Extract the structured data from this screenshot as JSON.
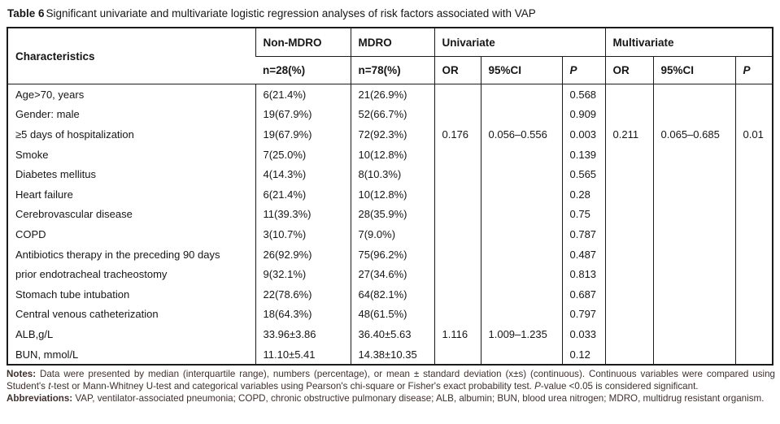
{
  "title": {
    "label": "Table 6",
    "text": "Significant univariate and multivariate logistic regression analyses of risk factors associated with VAP"
  },
  "header": {
    "characteristics": "Characteristics",
    "non_mdro": "Non-MDRO",
    "mdro": "MDRO",
    "univariate": "Univariate",
    "multivariate": "Multivariate",
    "n_non_mdro": "n=28(%)",
    "n_mdro": "n=78(%)",
    "or": "OR",
    "ci": "95%CI",
    "p": "P"
  },
  "rows": [
    {
      "characteristic": "Age>70, years",
      "non_mdro": "6(21.4%)",
      "mdro": "21(26.9%)",
      "uni_or": "",
      "uni_ci": "",
      "uni_p": "0.568",
      "multi_or": "",
      "multi_ci": "",
      "multi_p": ""
    },
    {
      "characteristic": "Gender: male",
      "non_mdro": "19(67.9%)",
      "mdro": "52(66.7%)",
      "uni_or": "",
      "uni_ci": "",
      "uni_p": "0.909",
      "multi_or": "",
      "multi_ci": "",
      "multi_p": ""
    },
    {
      "characteristic": "≥5 days of hospitalization",
      "non_mdro": "19(67.9%)",
      "mdro": "72(92.3%)",
      "uni_or": "0.176",
      "uni_ci": "0.056–0.556",
      "uni_p": "0.003",
      "multi_or": "0.211",
      "multi_ci": "0.065–0.685",
      "multi_p": "0.01"
    },
    {
      "characteristic": "Smoke",
      "non_mdro": "7(25.0%)",
      "mdro": "10(12.8%)",
      "uni_or": "",
      "uni_ci": "",
      "uni_p": "0.139",
      "multi_or": "",
      "multi_ci": "",
      "multi_p": ""
    },
    {
      "characteristic": "Diabetes mellitus",
      "non_mdro": "4(14.3%)",
      "mdro": "8(10.3%)",
      "uni_or": "",
      "uni_ci": "",
      "uni_p": "0.565",
      "multi_or": "",
      "multi_ci": "",
      "multi_p": ""
    },
    {
      "characteristic": "Heart failure",
      "non_mdro": "6(21.4%)",
      "mdro": "10(12.8%)",
      "uni_or": "",
      "uni_ci": "",
      "uni_p": "0.28",
      "multi_or": "",
      "multi_ci": "",
      "multi_p": ""
    },
    {
      "characteristic": "Cerebrovascular disease",
      "non_mdro": "11(39.3%)",
      "mdro": "28(35.9%)",
      "uni_or": "",
      "uni_ci": "",
      "uni_p": "0.75",
      "multi_or": "",
      "multi_ci": "",
      "multi_p": ""
    },
    {
      "characteristic": "COPD",
      "non_mdro": "3(10.7%)",
      "mdro": "7(9.0%)",
      "uni_or": "",
      "uni_ci": "",
      "uni_p": "0.787",
      "multi_or": "",
      "multi_ci": "",
      "multi_p": ""
    },
    {
      "characteristic": "Antibiotics therapy in the preceding 90 days",
      "non_mdro": "26(92.9%)",
      "mdro": "75(96.2%)",
      "uni_or": "",
      "uni_ci": "",
      "uni_p": "0.487",
      "multi_or": "",
      "multi_ci": "",
      "multi_p": ""
    },
    {
      "characteristic": "prior endotracheal tracheostomy",
      "non_mdro": "9(32.1%)",
      "mdro": "27(34.6%)",
      "uni_or": "",
      "uni_ci": "",
      "uni_p": "0.813",
      "multi_or": "",
      "multi_ci": "",
      "multi_p": ""
    },
    {
      "characteristic": "Stomach tube intubation",
      "non_mdro": "22(78.6%)",
      "mdro": "64(82.1%)",
      "uni_or": "",
      "uni_ci": "",
      "uni_p": "0.687",
      "multi_or": "",
      "multi_ci": "",
      "multi_p": ""
    },
    {
      "characteristic": "Central venous catheterization",
      "non_mdro": "18(64.3%)",
      "mdro": "48(61.5%)",
      "uni_or": "",
      "uni_ci": "",
      "uni_p": "0.797",
      "multi_or": "",
      "multi_ci": "",
      "multi_p": ""
    },
    {
      "characteristic": "ALB,g/L",
      "non_mdro": "33.96±3.86",
      "mdro": "36.40±5.63",
      "uni_or": "1.116",
      "uni_ci": "1.009–1.235",
      "uni_p": "0.033",
      "multi_or": "",
      "multi_ci": "",
      "multi_p": ""
    },
    {
      "characteristic": "BUN, mmol/L",
      "non_mdro": "11.10±5.41",
      "mdro": "14.38±10.35",
      "uni_or": "",
      "uni_ci": "",
      "uni_p": "0.12",
      "multi_or": "",
      "multi_ci": "",
      "multi_p": ""
    }
  ],
  "notes": {
    "label": "Notes:",
    "part1": "Data were presented by median (interquartile range), numbers (percentage), or mean ± standard deviation (x±s) (continuous). Continuous variables were compared using Student's ",
    "part2": "t",
    "part3": "-test or Mann-Whitney U-test and categorical variables using Pearson's chi-square or Fisher's exact probability test. ",
    "part4": "P",
    "part5": "-value <0.05 is considered significant."
  },
  "abbreviations": {
    "label": "Abbreviations:",
    "text": "VAP, ventilator-associated pneumonia; COPD, chronic obstructive pulmonary disease; ALB, albumin; BUN, blood urea nitrogen; MDRO, multidrug resistant organism."
  },
  "colors": {
    "border": "#1b1b1b",
    "text": "#161616",
    "notes_text": "#3f302d"
  }
}
